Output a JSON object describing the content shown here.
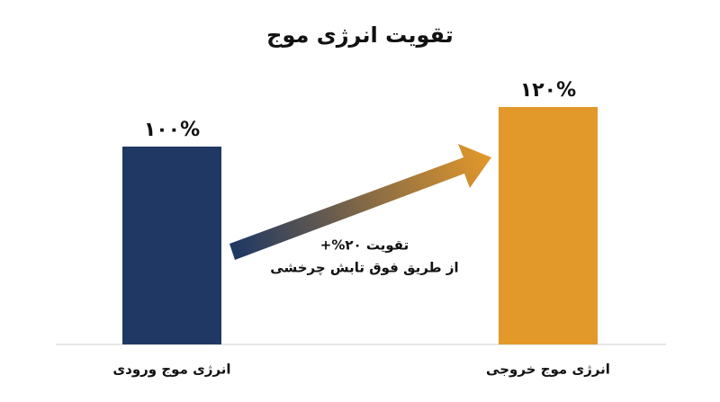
{
  "chart_data": {
    "type": "bar",
    "title": "تقویت انرژی موج",
    "categories": [
      "انرژی موج ورودی",
      "انرژی موج خروجی"
    ],
    "values": [
      100,
      120
    ],
    "value_labels": [
      "۱۰۰%",
      "۱۲۰%"
    ],
    "colors": [
      "#1f3864",
      "#e3982a"
    ],
    "annotations": [
      "تقویت ۲۰%+",
      "از طریق فوق تابش چرخشی"
    ]
  }
}
